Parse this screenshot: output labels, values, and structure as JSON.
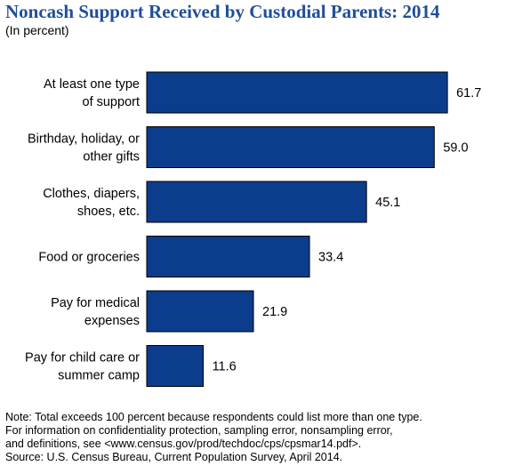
{
  "title": "Noncash Support Received by Custodial Parents: 2014",
  "subtitle": "(In percent)",
  "colors": {
    "bar": "#0c3c8c",
    "bar_edge": "#000000",
    "title": "#1f4e9b"
  },
  "chart_data": {
    "type": "bar",
    "orientation": "horizontal",
    "title": "Noncash Support Received by Custodial Parents: 2014",
    "subtitle": "(In percent)",
    "categories": [
      [
        "At least one type",
        "of support"
      ],
      [
        "Birthday, holiday, or",
        "other gifts"
      ],
      [
        "Clothes, diapers,",
        "shoes, etc."
      ],
      [
        "Food or groceries"
      ],
      [
        "Pay for medical",
        "expenses"
      ],
      [
        "Pay for child care or",
        "summer camp"
      ]
    ],
    "values": [
      61.7,
      59.0,
      45.1,
      33.4,
      21.9,
      11.6
    ],
    "value_labels": [
      "61.7",
      "59.0",
      "45.1",
      "33.4",
      "21.9",
      "11.6"
    ],
    "xlim": [
      0,
      70
    ],
    "grid": false,
    "legend": "none"
  },
  "notes": [
    "Note: Total exceeds 100 percent because respondents could list more than one type.",
    "For information on confidentiality protection, sampling error, nonsampling error,",
    "and definitions, see <www.census.gov/prod/techdoc/cps/cpsmar14.pdf>.",
    "Source: U.S. Census Bureau, Current Population Survey, April 2014."
  ]
}
